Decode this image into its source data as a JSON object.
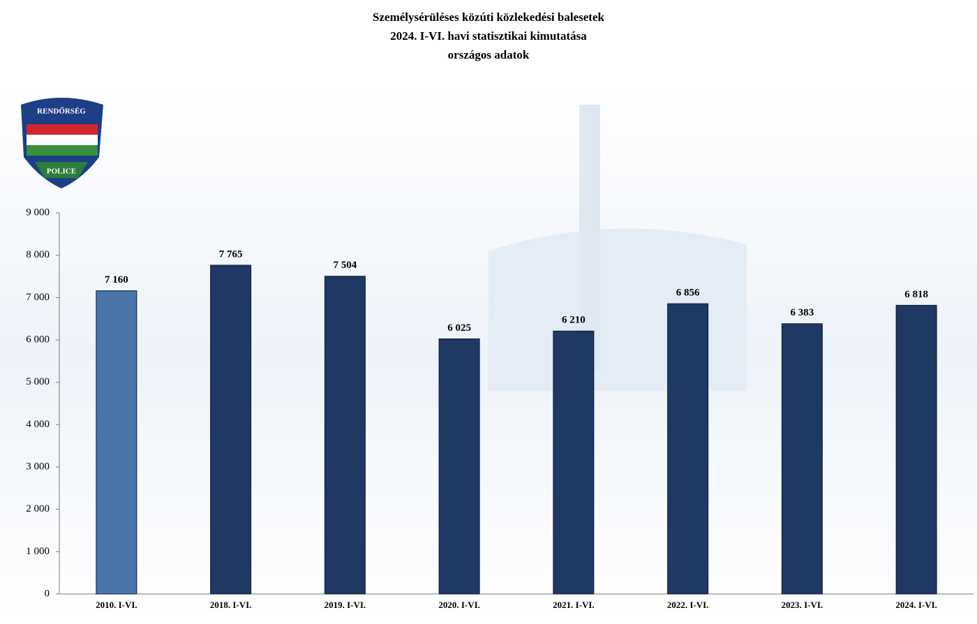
{
  "logo": {
    "top": "RENDŐRSÉG",
    "bottom": "POLICE"
  },
  "chart_data": {
    "type": "bar",
    "title": "Személysérüléses közúti közlekedési balesetek",
    "subtitle": [
      "2024. I-VI. havi statisztikai kimutatása",
      "országos adatok"
    ],
    "categories": [
      "2010. I-VI.",
      "2018. I-VI.",
      "2019. I-VI.",
      "2020. I-VI.",
      "2021. I-VI.",
      "2022. I-VI.",
      "2023. I-VI.",
      "2024. I-VI."
    ],
    "values": [
      7160,
      7765,
      7504,
      6025,
      6210,
      6856,
      6383,
      6818
    ],
    "value_labels": [
      "7 160",
      "7 765",
      "7 504",
      "6 025",
      "6 210",
      "6 856",
      "6 383",
      "6 818"
    ],
    "colors": [
      "#4a74aa",
      "#1f3864",
      "#1f3864",
      "#1f3864",
      "#1f3864",
      "#1f3864",
      "#1f3864",
      "#1f3864"
    ],
    "ylim": [
      0,
      9000
    ],
    "yticks": [
      0,
      {
        "value": 1000,
        "label": "1 000"
      },
      {
        "value": 2000,
        "label": "2 000"
      },
      {
        "value": 3000,
        "label": "3 000"
      },
      {
        "value": 4000,
        "label": "4 000"
      },
      {
        "value": 5000,
        "label": "5 000"
      },
      {
        "value": 6000,
        "label": "6 000"
      },
      {
        "value": 7000,
        "label": "7 000"
      },
      {
        "value": 8000,
        "label": "8 000"
      },
      {
        "value": 9000,
        "label": "9 000"
      }
    ],
    "grid": false
  }
}
